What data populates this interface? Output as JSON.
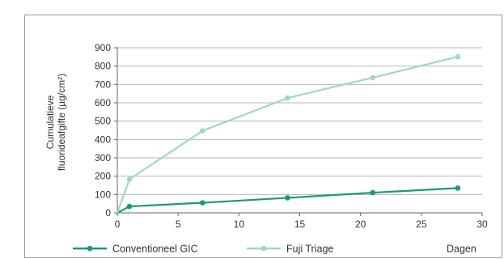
{
  "chart_data": {
    "type": "line",
    "ylabel_line1": "Cumulatieve",
    "ylabel_line2": "fluorideafgifte (µg/cm²)",
    "xlabel": "Dagen",
    "xlim": [
      0,
      30
    ],
    "ylim": [
      0,
      900
    ],
    "xticks": [
      0,
      5,
      10,
      15,
      20,
      25,
      30
    ],
    "yticks": [
      0,
      100,
      200,
      300,
      400,
      500,
      600,
      700,
      800,
      900
    ],
    "grid": "horizontal",
    "legend_position": "bottom",
    "series": [
      {
        "name": "Conventioneel GIC",
        "color": "#19987a",
        "x": [
          0,
          1,
          7,
          14,
          21,
          28
        ],
        "y": [
          0,
          35,
          55,
          82,
          110,
          135
        ]
      },
      {
        "name": "Fuji Triage",
        "color": "#9fd8c4",
        "x": [
          0,
          1,
          7,
          14,
          21,
          28
        ],
        "y": [
          0,
          183,
          447,
          626,
          737,
          851
        ]
      }
    ]
  }
}
